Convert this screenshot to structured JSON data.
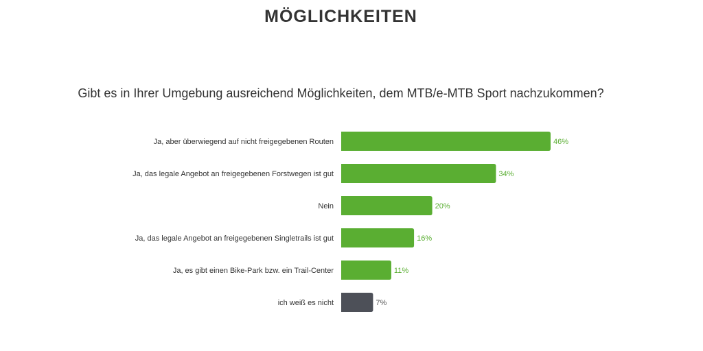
{
  "title": "MÖGLICHKEITEN",
  "chart_data": {
    "type": "bar",
    "orientation": "horizontal",
    "title": "Gibt es in Ihrer Umgebung ausreichend Möglichkeiten, dem MTB/e-MTB Sport nachzukommen?",
    "categories": [
      "Ja, aber überwiegend auf nicht freigegebenen Routen",
      "Ja, das legale Angebot an freigegebenen Forstwegen ist gut",
      "Nein",
      "Ja, das legale Angebot an freigegebenen Singletrails ist gut",
      "Ja, es gibt einen Bike-Park bzw. ein Trail-Center",
      "ich weiß es nicht"
    ],
    "values": [
      46,
      34,
      20,
      16,
      11,
      7
    ],
    "labels": [
      "46%",
      "34%",
      "20%",
      "16%",
      "11%",
      "7%"
    ],
    "colors": [
      "#5aae32",
      "#5aae32",
      "#5aae32",
      "#5aae32",
      "#5aae32",
      "#4d5058"
    ],
    "label_colors": [
      "#5aae32",
      "#5aae32",
      "#5aae32",
      "#5aae32",
      "#5aae32",
      "#555555"
    ],
    "xlim": [
      0,
      46
    ],
    "grid": false
  }
}
